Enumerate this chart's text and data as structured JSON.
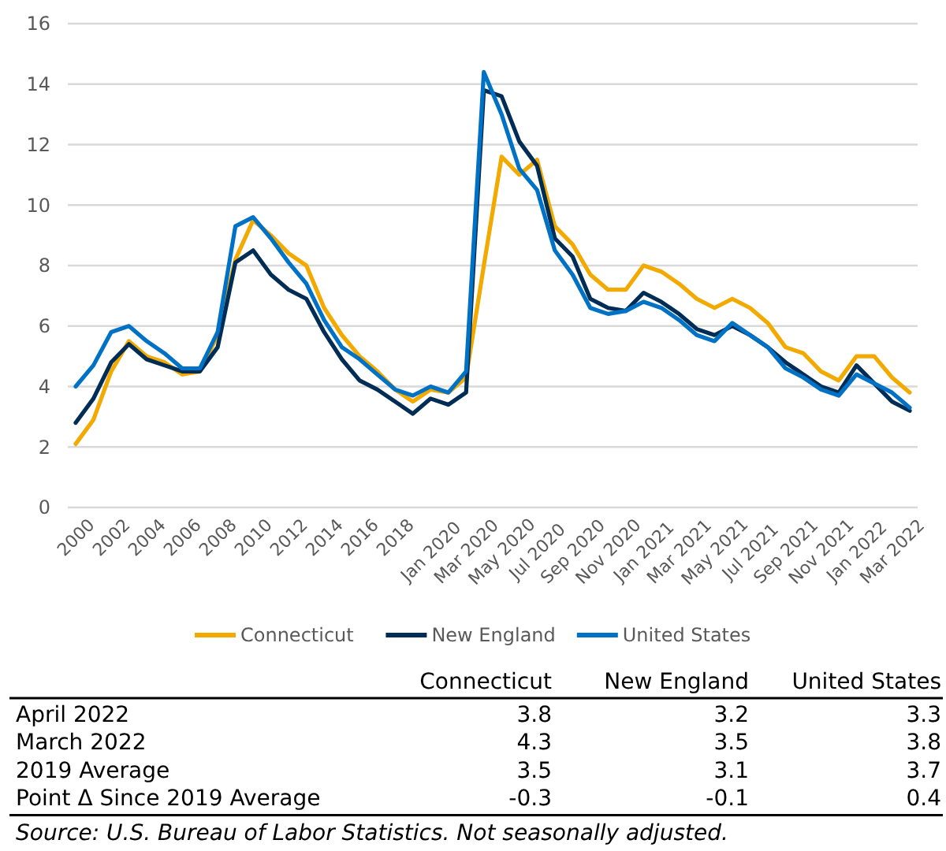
{
  "chart_data": {
    "type": "line",
    "categories": [
      "2000",
      null,
      "2002",
      null,
      "2004",
      null,
      "2006",
      null,
      "2008",
      null,
      "2010",
      null,
      "2012",
      null,
      "2014",
      null,
      "2016",
      null,
      "2018",
      null,
      "Jan 2020",
      null,
      "Mar 2020",
      null,
      "May 2020",
      null,
      "Jul 2020",
      null,
      "Sep 2020",
      null,
      "Nov 2020",
      null,
      "Jan 2021",
      null,
      "Mar 2021",
      null,
      "May 2021",
      null,
      "Jul 2021",
      null,
      "Sep 2021",
      null,
      "Nov 2021",
      null,
      "Jan 2022",
      null,
      "Mar 2022",
      null
    ],
    "series": [
      {
        "name": "Connecticut",
        "color": "#f2a900",
        "values": [
          2.1,
          2.9,
          4.5,
          5.5,
          5.0,
          4.8,
          4.4,
          4.5,
          5.7,
          8.2,
          9.5,
          9.0,
          8.4,
          8.0,
          6.6,
          5.7,
          5.0,
          4.5,
          3.9,
          3.5,
          3.9,
          3.8,
          4.3,
          8.0,
          11.6,
          11.0,
          11.5,
          9.3,
          8.7,
          7.7,
          7.2,
          7.2,
          8.0,
          7.8,
          7.4,
          6.9,
          6.6,
          6.9,
          6.6,
          6.1,
          5.3,
          5.1,
          4.5,
          4.2,
          5.0,
          5.0,
          4.3,
          3.8
        ]
      },
      {
        "name": "New England",
        "color": "#002d56",
        "values": [
          2.8,
          3.6,
          4.8,
          5.4,
          4.9,
          4.7,
          4.5,
          4.5,
          5.3,
          8.1,
          8.5,
          7.7,
          7.2,
          6.9,
          5.8,
          4.9,
          4.2,
          3.9,
          3.5,
          3.1,
          3.6,
          3.4,
          3.8,
          13.8,
          13.6,
          12.1,
          11.3,
          8.9,
          8.3,
          6.9,
          6.6,
          6.5,
          7.1,
          6.8,
          6.4,
          5.9,
          5.7,
          6.0,
          5.7,
          5.3,
          4.8,
          4.4,
          4.0,
          3.8,
          4.7,
          4.1,
          3.5,
          3.2
        ]
      },
      {
        "name": "United States",
        "color": "#0072c6",
        "values": [
          4.0,
          4.7,
          5.8,
          6.0,
          5.5,
          5.1,
          4.6,
          4.6,
          5.8,
          9.3,
          9.6,
          8.9,
          8.1,
          7.4,
          6.2,
          5.3,
          4.9,
          4.4,
          3.9,
          3.7,
          4.0,
          3.8,
          4.5,
          14.4,
          13.0,
          11.2,
          10.5,
          8.5,
          7.7,
          6.6,
          6.4,
          6.5,
          6.8,
          6.6,
          6.2,
          5.7,
          5.5,
          6.1,
          5.7,
          5.3,
          4.6,
          4.3,
          3.9,
          3.7,
          4.4,
          4.1,
          3.8,
          3.3
        ]
      }
    ],
    "ylim": [
      0,
      16
    ],
    "yticks": [
      0,
      2,
      4,
      6,
      8,
      10,
      12,
      14,
      16
    ],
    "grid": "y",
    "legend": "bottom",
    "marker": "none",
    "line_style": "solid",
    "annotations": [
      "\tConnecticut\tNew England\tUnited States",
      "April 2022\t3.8\t3.2\t3.3",
      "March 2022\t4.3\t3.5\t3.8",
      "2019 Average\t3.5\t3.1\t3.7",
      "Point Δ Since 2019 Average\t-0.3\t-0.1\t0.4",
      "Source: U.S. Bureau of Labor Statistics. Not seasonally adjusted."
    ]
  }
}
